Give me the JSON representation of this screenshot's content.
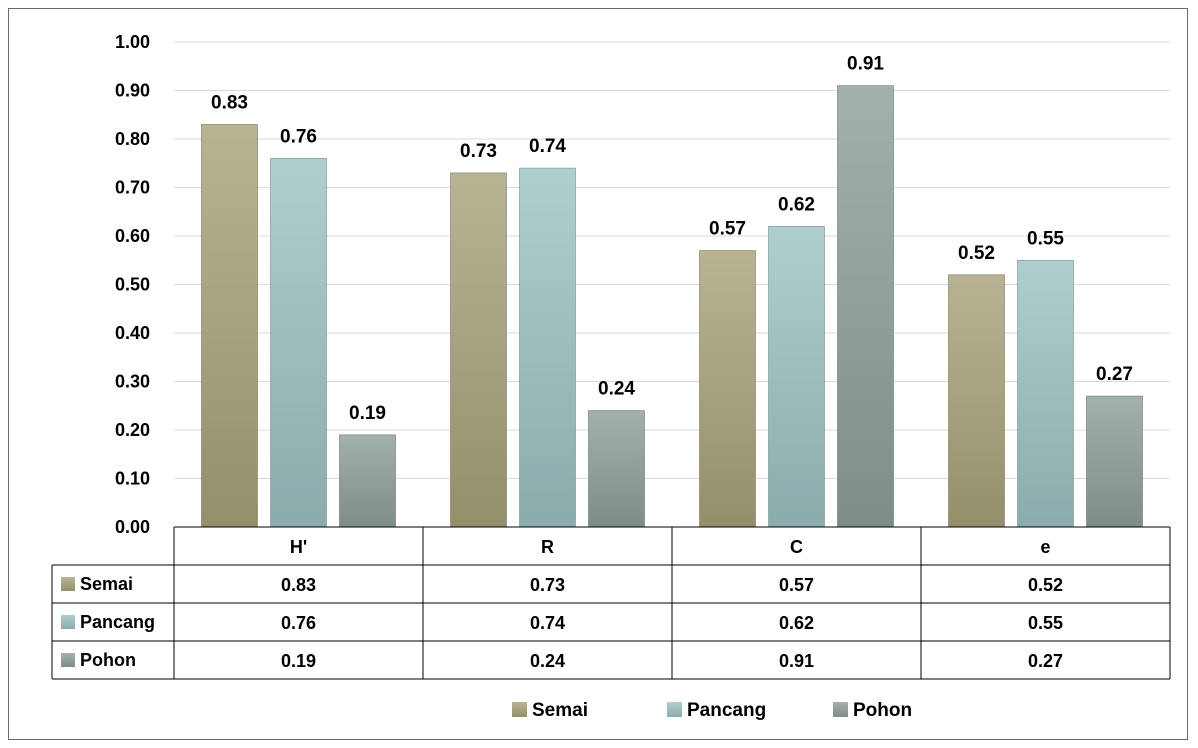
{
  "chart_data": {
    "type": "bar",
    "categories": [
      "H'",
      "R",
      "C",
      "e"
    ],
    "series": [
      {
        "name": "Semai",
        "values": [
          0.83,
          0.73,
          0.57,
          0.52
        ],
        "color": "#a8a27a"
      },
      {
        "name": "Pancang",
        "values": [
          0.76,
          0.74,
          0.62,
          0.55
        ],
        "color": "#9ec3c3"
      },
      {
        "name": "Pohon",
        "values": [
          0.19,
          0.24,
          0.91,
          0.27
        ],
        "color": "#8fa09a"
      }
    ],
    "ylim": [
      0,
      1.0
    ],
    "yticks": [
      "0.00",
      "0.10",
      "0.20",
      "0.30",
      "0.40",
      "0.50",
      "0.60",
      "0.70",
      "0.80",
      "0.90",
      "1.00"
    ],
    "title": "",
    "xlabel": "",
    "ylabel": "",
    "grid": true,
    "legend_position": "bottom",
    "data_table": true
  }
}
